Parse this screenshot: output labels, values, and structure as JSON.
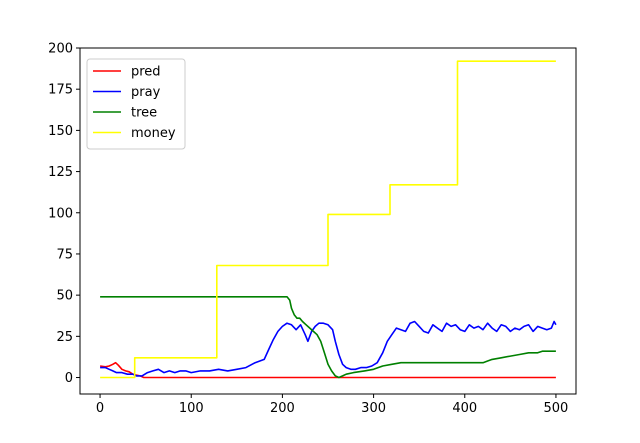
{
  "chart_data": {
    "type": "line",
    "title": "",
    "xlabel": "",
    "ylabel": "",
    "xlim": [
      -22,
      522
    ],
    "ylim": [
      -10,
      200
    ],
    "xticks": [
      0,
      100,
      200,
      300,
      400,
      500
    ],
    "yticks": [
      0,
      25,
      50,
      75,
      100,
      125,
      150,
      175,
      200
    ],
    "grid": false,
    "legend_position": "top-left",
    "series": [
      {
        "name": "pred",
        "color": "#ff0000",
        "points": [
          [
            0,
            7
          ],
          [
            6,
            6.5
          ],
          [
            10,
            7
          ],
          [
            14,
            8
          ],
          [
            17,
            9
          ],
          [
            20,
            7.5
          ],
          [
            24,
            5
          ],
          [
            28,
            4
          ],
          [
            32,
            3.5
          ],
          [
            36,
            2
          ],
          [
            40,
            1.5
          ],
          [
            44,
            1
          ],
          [
            48,
            0
          ],
          [
            60,
            0
          ],
          [
            100,
            0
          ],
          [
            200,
            0
          ],
          [
            300,
            0
          ],
          [
            400,
            0
          ],
          [
            500,
            0
          ]
        ]
      },
      {
        "name": "pray",
        "color": "#0000ff",
        "points": [
          [
            0,
            6
          ],
          [
            6,
            6
          ],
          [
            10,
            5
          ],
          [
            14,
            4
          ],
          [
            18,
            3
          ],
          [
            24,
            3
          ],
          [
            30,
            2
          ],
          [
            36,
            2
          ],
          [
            40,
            1
          ],
          [
            46,
            1
          ],
          [
            52,
            3
          ],
          [
            58,
            4
          ],
          [
            64,
            5
          ],
          [
            70,
            3
          ],
          [
            76,
            4
          ],
          [
            82,
            3
          ],
          [
            88,
            4
          ],
          [
            94,
            4
          ],
          [
            100,
            3
          ],
          [
            110,
            4
          ],
          [
            120,
            4
          ],
          [
            130,
            5
          ],
          [
            140,
            4
          ],
          [
            150,
            5
          ],
          [
            160,
            6
          ],
          [
            170,
            9
          ],
          [
            180,
            11
          ],
          [
            185,
            17
          ],
          [
            190,
            23
          ],
          [
            195,
            28
          ],
          [
            200,
            31
          ],
          [
            205,
            33
          ],
          [
            210,
            32
          ],
          [
            215,
            29
          ],
          [
            220,
            32
          ],
          [
            225,
            26
          ],
          [
            228,
            22
          ],
          [
            232,
            28
          ],
          [
            236,
            31
          ],
          [
            240,
            33
          ],
          [
            245,
            33
          ],
          [
            250,
            32
          ],
          [
            255,
            29
          ],
          [
            258,
            22
          ],
          [
            262,
            14
          ],
          [
            266,
            8
          ],
          [
            270,
            6
          ],
          [
            275,
            5
          ],
          [
            280,
            5
          ],
          [
            286,
            6
          ],
          [
            292,
            6
          ],
          [
            298,
            7
          ],
          [
            304,
            9
          ],
          [
            310,
            15
          ],
          [
            315,
            22
          ],
          [
            320,
            26
          ],
          [
            325,
            30
          ],
          [
            330,
            29
          ],
          [
            335,
            28
          ],
          [
            340,
            33
          ],
          [
            345,
            34
          ],
          [
            350,
            31
          ],
          [
            355,
            28
          ],
          [
            360,
            27
          ],
          [
            365,
            32
          ],
          [
            370,
            30
          ],
          [
            375,
            28
          ],
          [
            380,
            33
          ],
          [
            385,
            31
          ],
          [
            390,
            32
          ],
          [
            395,
            29
          ],
          [
            400,
            28
          ],
          [
            405,
            32
          ],
          [
            410,
            30
          ],
          [
            415,
            31
          ],
          [
            420,
            29
          ],
          [
            425,
            33
          ],
          [
            430,
            30
          ],
          [
            435,
            28
          ],
          [
            440,
            32
          ],
          [
            445,
            31
          ],
          [
            450,
            28
          ],
          [
            455,
            30
          ],
          [
            460,
            29
          ],
          [
            465,
            31
          ],
          [
            470,
            32
          ],
          [
            475,
            28
          ],
          [
            480,
            31
          ],
          [
            485,
            30
          ],
          [
            490,
            29
          ],
          [
            495,
            30
          ],
          [
            498,
            34
          ],
          [
            500,
            32
          ]
        ]
      },
      {
        "name": "tree",
        "color": "#008000",
        "points": [
          [
            0,
            49
          ],
          [
            100,
            49
          ],
          [
            200,
            49
          ],
          [
            205,
            49
          ],
          [
            208,
            47
          ],
          [
            210,
            42
          ],
          [
            213,
            38
          ],
          [
            216,
            36
          ],
          [
            219,
            36
          ],
          [
            222,
            34
          ],
          [
            226,
            32
          ],
          [
            230,
            30
          ],
          [
            234,
            28
          ],
          [
            238,
            26
          ],
          [
            242,
            22
          ],
          [
            246,
            15
          ],
          [
            250,
            8
          ],
          [
            254,
            4
          ],
          [
            258,
            1
          ],
          [
            262,
            0
          ],
          [
            266,
            1
          ],
          [
            270,
            2
          ],
          [
            278,
            3
          ],
          [
            290,
            4
          ],
          [
            300,
            5
          ],
          [
            305,
            6
          ],
          [
            310,
            7
          ],
          [
            320,
            8
          ],
          [
            330,
            9
          ],
          [
            360,
            9
          ],
          [
            390,
            9
          ],
          [
            420,
            9
          ],
          [
            425,
            10
          ],
          [
            430,
            11
          ],
          [
            440,
            12
          ],
          [
            450,
            13
          ],
          [
            460,
            14
          ],
          [
            470,
            15
          ],
          [
            480,
            15
          ],
          [
            485,
            16
          ],
          [
            500,
            16
          ]
        ]
      },
      {
        "name": "money",
        "color": "#ffff00",
        "points": [
          [
            0,
            0
          ],
          [
            38,
            0
          ],
          [
            38,
            12
          ],
          [
            128,
            12
          ],
          [
            128,
            68
          ],
          [
            250,
            68
          ],
          [
            250,
            99
          ],
          [
            318,
            99
          ],
          [
            318,
            117
          ],
          [
            392,
            117
          ],
          [
            392,
            192
          ],
          [
            500,
            192
          ]
        ]
      }
    ]
  }
}
